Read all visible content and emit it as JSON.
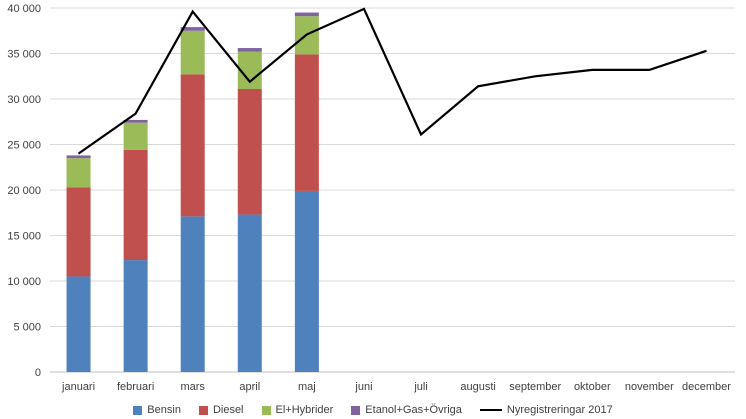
{
  "chart_data": {
    "type": "bar",
    "stacked": true,
    "categories": [
      "januari",
      "februari",
      "mars",
      "april",
      "maj",
      "juni",
      "juli",
      "augusti",
      "september",
      "oktober",
      "november",
      "december"
    ],
    "series": [
      {
        "name": "Bensin",
        "type": "bar",
        "color": "#4F81BD",
        "values": [
          10500,
          12300,
          17100,
          17300,
          19900,
          null,
          null,
          null,
          null,
          null,
          null,
          null
        ]
      },
      {
        "name": "Diesel",
        "type": "bar",
        "color": "#C0504D",
        "values": [
          9800,
          12100,
          15600,
          13800,
          15000,
          null,
          null,
          null,
          null,
          null,
          null,
          null
        ]
      },
      {
        "name": "El+Hybrider",
        "type": "bar",
        "color": "#9BBB59",
        "values": [
          3200,
          3000,
          4800,
          4100,
          4200,
          null,
          null,
          null,
          null,
          null,
          null,
          null
        ]
      },
      {
        "name": "Etanol+Gas+Övriga",
        "type": "bar",
        "color": "#8064A2",
        "values": [
          300,
          300,
          400,
          400,
          400,
          null,
          null,
          null,
          null,
          null,
          null,
          null
        ]
      },
      {
        "name": "Nyregistreringar 2017",
        "type": "line",
        "color": "#000000",
        "values": [
          24000,
          28400,
          39600,
          31900,
          37100,
          39900,
          26100,
          31400,
          32500,
          33200,
          33200,
          35300
        ]
      }
    ],
    "ylim": [
      0,
      40000
    ],
    "yticks": [
      "0",
      "5 000",
      "10 000",
      "15 000",
      "20 000",
      "25 000",
      "30 000",
      "35 000",
      "40 000"
    ],
    "ytick_values": [
      0,
      5000,
      10000,
      15000,
      20000,
      25000,
      30000,
      35000,
      40000
    ],
    "grid": true,
    "legend_position": "bottom"
  }
}
